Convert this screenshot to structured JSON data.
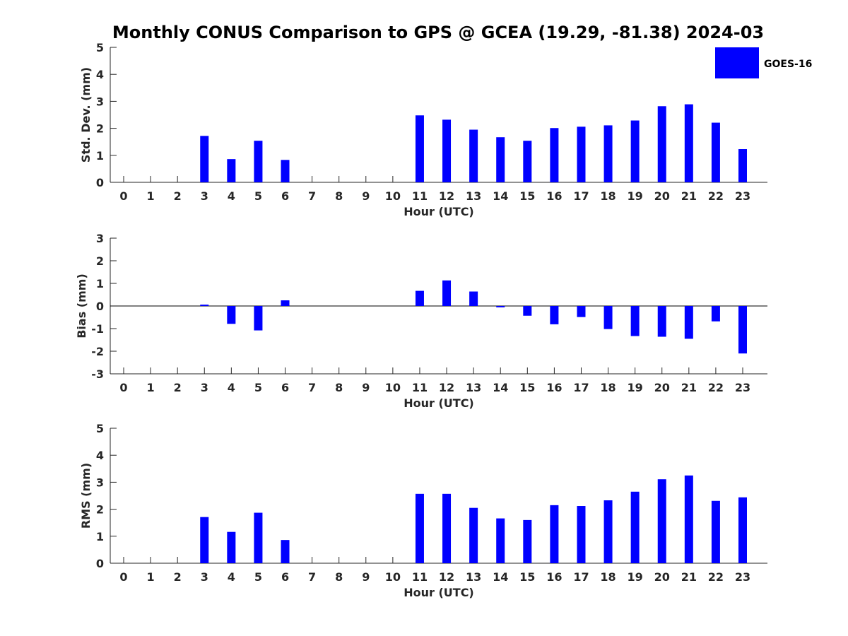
{
  "chart_data": [
    {
      "type": "bar",
      "title": "Monthly CONUS Comparison to GPS @ GCEA (19.29, -81.38) 2024-03",
      "xlabel": "Hour (UTC)",
      "ylabel": "Std. Dev. (mm)",
      "ylim": [
        0,
        5
      ],
      "yticks": [
        0,
        1,
        2,
        3,
        4,
        5
      ],
      "categories": [
        "0",
        "1",
        "2",
        "3",
        "4",
        "5",
        "6",
        "7",
        "8",
        "9",
        "10",
        "11",
        "12",
        "13",
        "14",
        "15",
        "16",
        "17",
        "18",
        "19",
        "20",
        "21",
        "22",
        "23"
      ],
      "series": [
        {
          "name": "GOES-16",
          "color": "#0000ff",
          "values": [
            null,
            null,
            null,
            1.72,
            0.86,
            1.54,
            0.83,
            null,
            null,
            null,
            null,
            2.48,
            2.32,
            1.95,
            1.67,
            1.54,
            2.01,
            2.06,
            2.11,
            2.29,
            2.82,
            2.89,
            2.21,
            1.23
          ]
        }
      ],
      "legend": "top-right"
    },
    {
      "type": "bar",
      "xlabel": "Hour (UTC)",
      "ylabel": "Bias (mm)",
      "ylim": [
        -3,
        3
      ],
      "yticks": [
        -3,
        -2,
        -1,
        0,
        1,
        2,
        3
      ],
      "categories": [
        "0",
        "1",
        "2",
        "3",
        "4",
        "5",
        "6",
        "7",
        "8",
        "9",
        "10",
        "11",
        "12",
        "13",
        "14",
        "15",
        "16",
        "17",
        "18",
        "19",
        "20",
        "21",
        "22",
        "23"
      ],
      "series": [
        {
          "name": "GOES-16",
          "color": "#0000ff",
          "values": [
            null,
            null,
            null,
            0.06,
            -0.79,
            -1.08,
            0.25,
            null,
            null,
            null,
            null,
            0.67,
            1.13,
            0.64,
            -0.06,
            -0.43,
            -0.81,
            -0.49,
            -1.02,
            -1.33,
            -1.36,
            -1.45,
            -0.68,
            -2.1
          ]
        }
      ]
    },
    {
      "type": "bar",
      "xlabel": "Hour (UTC)",
      "ylabel": "RMS (mm)",
      "ylim": [
        0,
        5
      ],
      "yticks": [
        0,
        1,
        2,
        3,
        4,
        5
      ],
      "categories": [
        "0",
        "1",
        "2",
        "3",
        "4",
        "5",
        "6",
        "7",
        "8",
        "9",
        "10",
        "11",
        "12",
        "13",
        "14",
        "15",
        "16",
        "17",
        "18",
        "19",
        "20",
        "21",
        "22",
        "23"
      ],
      "series": [
        {
          "name": "GOES-16",
          "color": "#0000ff",
          "values": [
            null,
            null,
            null,
            1.71,
            1.16,
            1.87,
            0.86,
            null,
            null,
            null,
            null,
            2.57,
            2.57,
            2.05,
            1.66,
            1.6,
            2.15,
            2.12,
            2.33,
            2.65,
            3.11,
            3.25,
            2.31,
            2.44
          ]
        }
      ]
    }
  ]
}
